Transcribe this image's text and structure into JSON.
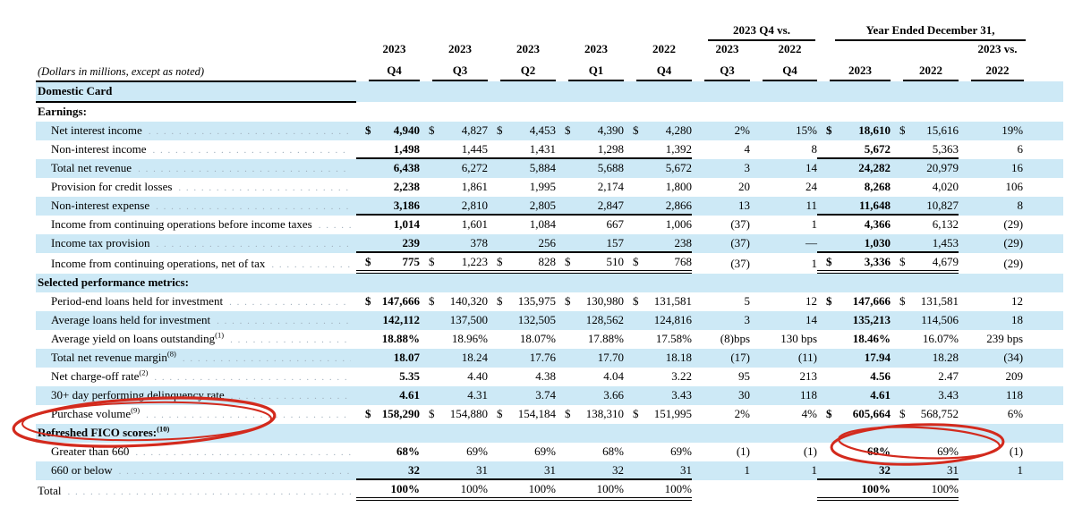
{
  "meta": {
    "note": "(Dollars in millions, except as noted)"
  },
  "header": {
    "group_q4vs": "2023 Q4 vs.",
    "group_year": "Year Ended December 31,",
    "row_years": [
      "2023",
      "2023",
      "2023",
      "2023",
      "2022",
      "2023",
      "2022",
      "",
      "",
      "2023 vs."
    ],
    "row_periods": [
      "Q4",
      "Q3",
      "Q2",
      "Q1",
      "Q4",
      "Q3",
      "Q4",
      "2023",
      "2022",
      "2022"
    ]
  },
  "rows": [
    {
      "type": "section",
      "label": "Domestic Card",
      "label_rule": true
    },
    {
      "type": "section",
      "label": "Earnings:"
    },
    {
      "type": "data",
      "label": "Net interest income",
      "cells": [
        "$ 4,940",
        "$ 4,827",
        "$ 4,453",
        "$ 4,390",
        "$ 4,280",
        "2%",
        "15%",
        "$ 18,610",
        "$ 15,616",
        "19%"
      ]
    },
    {
      "type": "data",
      "label": "Non-interest income",
      "rule": "single",
      "cells": [
        "1,498",
        "1,445",
        "1,431",
        "1,298",
        "1,392",
        "4",
        "8",
        "5,672",
        "5,363",
        "6"
      ]
    },
    {
      "type": "data",
      "label": "Total net revenue",
      "cells": [
        "6,438",
        "6,272",
        "5,884",
        "5,688",
        "5,672",
        "3",
        "14",
        "24,282",
        "20,979",
        "16"
      ]
    },
    {
      "type": "data",
      "label": "Provision for credit losses",
      "cells": [
        "2,238",
        "1,861",
        "1,995",
        "2,174",
        "1,800",
        "20",
        "24",
        "8,268",
        "4,020",
        "106"
      ]
    },
    {
      "type": "data",
      "label": "Non-interest expense",
      "rule": "single",
      "cells": [
        "3,186",
        "2,810",
        "2,805",
        "2,847",
        "2,866",
        "13",
        "11",
        "11,648",
        "10,827",
        "8"
      ]
    },
    {
      "type": "data",
      "label": "Income from continuing operations before income taxes",
      "cells": [
        "1,014",
        "1,601",
        "1,084",
        "667",
        "1,006",
        "(37)",
        "1",
        "4,366",
        "6,132",
        "(29)"
      ]
    },
    {
      "type": "data",
      "label": "Income tax provision",
      "rule": "single",
      "cells": [
        "239",
        "378",
        "256",
        "157",
        "238",
        "(37)",
        "—",
        "1,030",
        "1,453",
        "(29)"
      ]
    },
    {
      "type": "data",
      "label": "Income from continuing operations, net of tax",
      "rule": "double",
      "cells": [
        "$ 775",
        "$ 1,223",
        "$ 828",
        "$ 510",
        "$ 768",
        "(37)",
        "1",
        "$ 3,336",
        "$ 4,679",
        "(29)"
      ]
    },
    {
      "type": "section",
      "label": "Selected performance metrics:"
    },
    {
      "type": "data",
      "label": "Period-end loans held for investment",
      "cells": [
        "$ 147,666",
        "$ 140,320",
        "$ 135,975",
        "$ 130,980",
        "$ 131,581",
        "5",
        "12",
        "$ 147,666",
        "$ 131,581",
        "12"
      ]
    },
    {
      "type": "data",
      "label": "Average loans held for investment",
      "cells": [
        "142,112",
        "137,500",
        "132,505",
        "128,562",
        "124,816",
        "3",
        "14",
        "135,213",
        "114,506",
        "18"
      ]
    },
    {
      "type": "data",
      "label": "Average yield on loans outstanding",
      "sup": "(1)",
      "cells": [
        "18.88%",
        "18.96%",
        "18.07%",
        "17.88%",
        "17.58%",
        "(8)bps",
        "130 bps",
        "18.46%",
        "16.07%",
        "239 bps"
      ]
    },
    {
      "type": "data",
      "label": "Total net revenue margin",
      "sup": "(8)",
      "cells": [
        "18.07",
        "18.24",
        "17.76",
        "17.70",
        "18.18",
        "(17)",
        "(11)",
        "17.94",
        "18.28",
        "(34)"
      ]
    },
    {
      "type": "data",
      "label": "Net charge-off rate",
      "sup": "(2)",
      "cells": [
        "5.35",
        "4.40",
        "4.38",
        "4.04",
        "3.22",
        "95",
        "213",
        "4.56",
        "2.47",
        "209"
      ]
    },
    {
      "type": "data",
      "label": "30+ day performing delinquency rate",
      "cells": [
        "4.61",
        "4.31",
        "3.74",
        "3.66",
        "3.43",
        "30",
        "118",
        "4.61",
        "3.43",
        "118"
      ]
    },
    {
      "type": "data",
      "label": "Purchase volume",
      "sup": "(9)",
      "cells": [
        "$ 158,290",
        "$ 154,880",
        "$ 154,184",
        "$ 138,310",
        "$ 151,995",
        "2%",
        "4%",
        "$ 605,664",
        "$ 568,752",
        "6%"
      ]
    },
    {
      "type": "section",
      "label": "Refreshed FICO scores:",
      "sup": "(10)"
    },
    {
      "type": "data",
      "label": "Greater than 660",
      "cells": [
        "68%",
        "69%",
        "69%",
        "68%",
        "69%",
        "(1)",
        "(1)",
        "68%",
        "69%",
        "(1)"
      ]
    },
    {
      "type": "data",
      "label": "660 or below",
      "rule": "single",
      "cells": [
        "32",
        "31",
        "31",
        "32",
        "31",
        "1",
        "1",
        "32",
        "31",
        "1"
      ]
    },
    {
      "type": "data",
      "label": "Total",
      "indent": false,
      "rule": "double",
      "cells": [
        "100%",
        "100%",
        "100%",
        "100%",
        "100%",
        "",
        "",
        "100%",
        "100%",
        ""
      ]
    }
  ],
  "annotations": [
    {
      "id": "fico-label-circle",
      "description": "hand-drawn red ellipse around Refreshed FICO scores label"
    },
    {
      "id": "ye-fico-values-circle",
      "description": "hand-drawn red ellipse around Year Ended 68% and 69% values"
    }
  ],
  "colors": {
    "row_highlight": "#cde9f6",
    "text": "#000000",
    "annotation_red": "#d32a1d"
  }
}
